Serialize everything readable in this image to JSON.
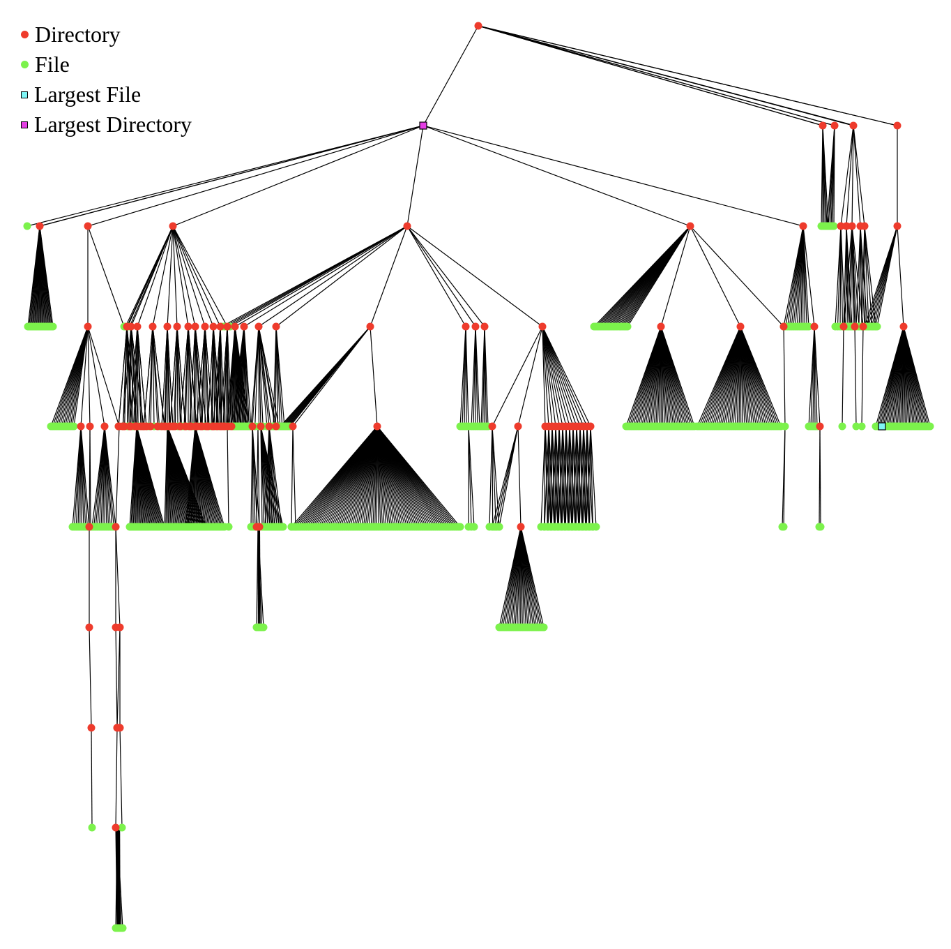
{
  "legend": {
    "items": [
      {
        "label": "Directory",
        "shape": "circle",
        "color": "#ee3b2c",
        "icon": "red-circle-icon"
      },
      {
        "label": "File",
        "shape": "circle",
        "color": "#7cf24c",
        "icon": "green-circle-icon"
      },
      {
        "label": "Largest File",
        "shape": "square",
        "color": "#7ff5f5",
        "icon": "cyan-square-icon"
      },
      {
        "label": "Largest Directory",
        "shape": "square",
        "color": "#e43ee4",
        "icon": "magenta-square-icon"
      }
    ]
  },
  "colors": {
    "directory": "#ee3b2c",
    "file": "#7cf24c",
    "largest_file": "#7ff5f5",
    "largest_directory": "#e43ee4",
    "edge": "#000000"
  }
}
